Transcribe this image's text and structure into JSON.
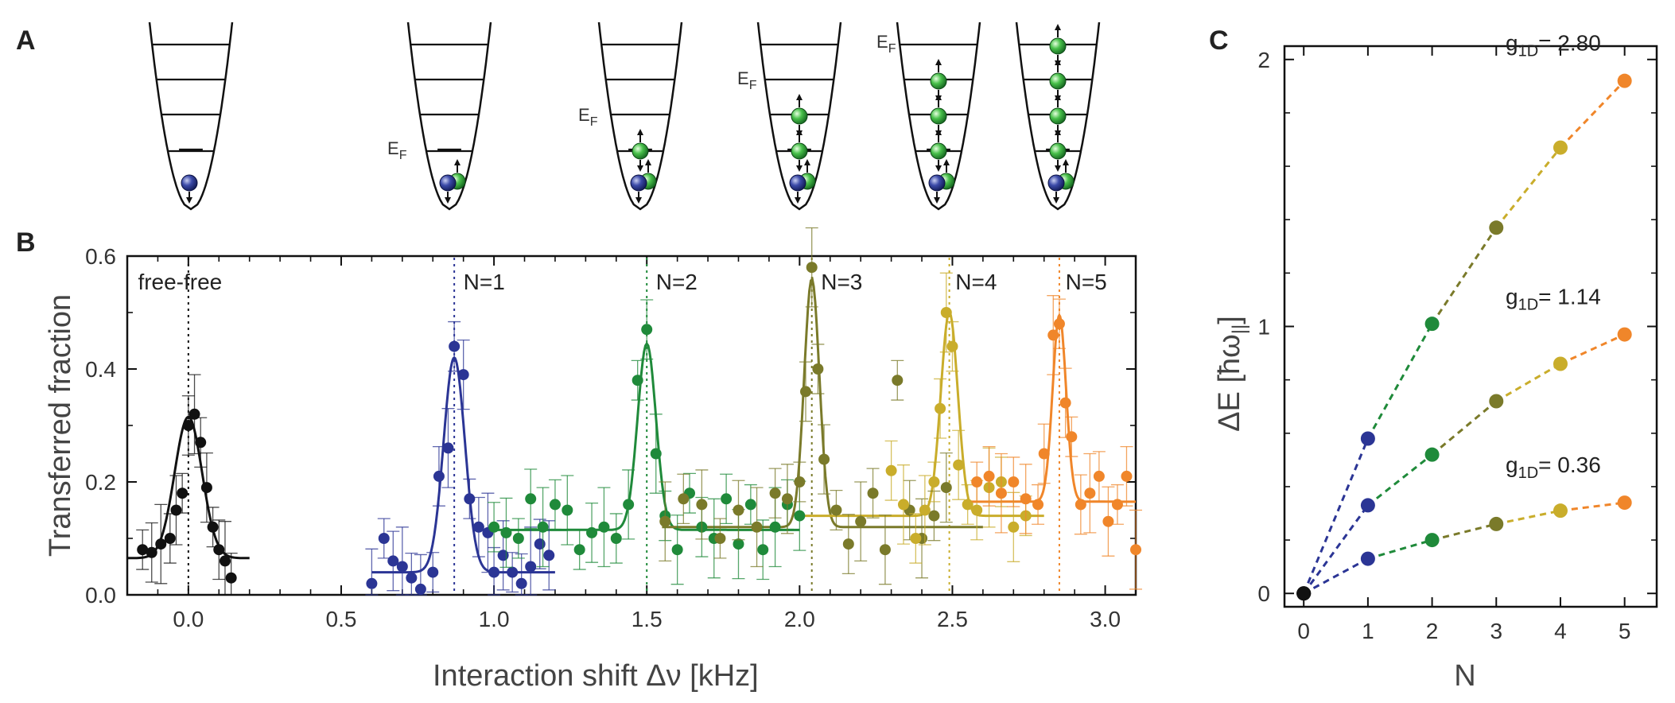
{
  "panels": {
    "a": "A",
    "b": "B",
    "c": "C"
  },
  "panel_a": {
    "fermi_label_main": "E",
    "fermi_label_sub": "F",
    "wells": [
      {
        "excited_levels": 0,
        "ef_level": null
      },
      {
        "excited_levels": 0,
        "ef_level": 1
      },
      {
        "excited_levels": 1,
        "ef_level": 2
      },
      {
        "excited_levels": 2,
        "ef_level": 3
      },
      {
        "excited_levels": 3,
        "ef_level": 4
      },
      {
        "excited_levels": 4,
        "ef_level": null
      }
    ],
    "colors": {
      "impurity": "#2a3593",
      "fermion": "#4ec24e"
    }
  },
  "chart_data": [
    {
      "type": "scatter",
      "panel": "B",
      "xlabel": "Interaction shift  Δν [kHz]",
      "ylabel": "Transferred fraction",
      "xlim": [
        -0.2,
        3.1
      ],
      "ylim": [
        0,
        0.6
      ],
      "xticks": [
        "0.0",
        "0.5",
        "1.0",
        "1.5",
        "2.0",
        "2.5",
        "3.0"
      ],
      "yticks": [
        "0.0",
        "0.2",
        "0.4",
        "0.6"
      ],
      "grid": false,
      "resonances": [
        {
          "label": "free-free",
          "center": 0.0,
          "color": "#111111",
          "amp": 0.25,
          "base": 0.065,
          "width": 0.045,
          "fit_range": [
            -0.2,
            0.2
          ]
        },
        {
          "label": "N=1",
          "center": 0.87,
          "color": "#2b3595",
          "amp": 0.38,
          "base": 0.04,
          "width": 0.035,
          "fit_range": [
            0.6,
            1.2
          ]
        },
        {
          "label": "N=2",
          "center": 1.5,
          "color": "#1f8a3a",
          "amp": 0.33,
          "base": 0.115,
          "width": 0.03,
          "fit_range": [
            1.0,
            2.0
          ]
        },
        {
          "label": "N=3",
          "center": 2.04,
          "color": "#7a7a2a",
          "amp": 0.44,
          "base": 0.12,
          "width": 0.025,
          "fit_range": [
            1.55,
            2.6
          ]
        },
        {
          "label": "N=4",
          "center": 2.49,
          "color": "#c9ad2b",
          "amp": 0.36,
          "base": 0.14,
          "width": 0.028,
          "fit_range": [
            2.0,
            2.8
          ]
        },
        {
          "label": "N=5",
          "center": 2.85,
          "color": "#f0862a",
          "amp": 0.33,
          "base": 0.165,
          "width": 0.022,
          "fit_range": [
            2.55,
            3.1
          ]
        }
      ],
      "series": [
        {
          "color": "#111111",
          "x": [
            -0.15,
            -0.12,
            -0.09,
            -0.06,
            -0.04,
            -0.02,
            0.0,
            0.02,
            0.04,
            0.06,
            0.08,
            0.1,
            0.12,
            0.14
          ],
          "y": [
            0.08,
            0.075,
            0.09,
            0.1,
            0.15,
            0.18,
            0.3,
            0.32,
            0.27,
            0.19,
            0.12,
            0.08,
            0.06,
            0.03
          ]
        },
        {
          "color": "#2b3595",
          "x": [
            0.6,
            0.64,
            0.67,
            0.7,
            0.73,
            0.76,
            0.8,
            0.82,
            0.85,
            0.87,
            0.9,
            0.92,
            0.95,
            0.98,
            1.0,
            1.03,
            1.06,
            1.09,
            1.12,
            1.15,
            1.18
          ],
          "y": [
            0.02,
            0.1,
            0.06,
            0.05,
            0.03,
            0.01,
            0.04,
            0.21,
            0.26,
            0.44,
            0.39,
            0.17,
            0.12,
            0.11,
            0.04,
            0.07,
            0.04,
            0.02,
            0.05,
            0.09,
            0.07
          ]
        },
        {
          "color": "#1f8a3a",
          "x": [
            1.0,
            1.04,
            1.08,
            1.12,
            1.16,
            1.2,
            1.24,
            1.28,
            1.32,
            1.36,
            1.4,
            1.44,
            1.47,
            1.5,
            1.53,
            1.56,
            1.6,
            1.64,
            1.68,
            1.72,
            1.76,
            1.8,
            1.84,
            1.88,
            1.92,
            1.96,
            2.0
          ],
          "y": [
            0.12,
            0.11,
            0.1,
            0.17,
            0.12,
            0.16,
            0.15,
            0.08,
            0.11,
            0.12,
            0.1,
            0.16,
            0.38,
            0.47,
            0.25,
            0.14,
            0.08,
            0.18,
            0.12,
            0.1,
            0.17,
            0.09,
            0.16,
            0.08,
            0.12,
            0.16,
            0.14
          ]
        },
        {
          "color": "#7a7a2a",
          "x": [
            1.56,
            1.62,
            1.68,
            1.74,
            1.8,
            1.86,
            1.92,
            1.96,
            2.0,
            2.02,
            2.04,
            2.06,
            2.08,
            2.12,
            2.16,
            2.2,
            2.24,
            2.28,
            2.32,
            2.36,
            2.4,
            2.44,
            2.48
          ],
          "y": [
            0.13,
            0.17,
            0.16,
            0.1,
            0.15,
            0.12,
            0.18,
            0.17,
            0.2,
            0.36,
            0.58,
            0.4,
            0.24,
            0.15,
            0.09,
            0.13,
            0.18,
            0.08,
            0.38,
            0.15,
            0.1,
            0.14,
            0.19
          ]
        },
        {
          "color": "#c9ad2b",
          "x": [
            2.3,
            2.34,
            2.38,
            2.41,
            2.44,
            2.46,
            2.48,
            2.5,
            2.52,
            2.55,
            2.58,
            2.62,
            2.66,
            2.7,
            2.74
          ],
          "y": [
            0.22,
            0.16,
            0.1,
            0.15,
            0.2,
            0.33,
            0.5,
            0.44,
            0.23,
            0.16,
            0.15,
            0.19,
            0.2,
            0.12,
            0.14
          ]
        },
        {
          "color": "#f0862a",
          "x": [
            2.58,
            2.62,
            2.66,
            2.7,
            2.74,
            2.78,
            2.8,
            2.83,
            2.85,
            2.87,
            2.89,
            2.92,
            2.95,
            2.98,
            3.01,
            3.04,
            3.07,
            3.1
          ],
          "y": [
            0.2,
            0.21,
            0.18,
            0.2,
            0.17,
            0.16,
            0.25,
            0.46,
            0.48,
            0.34,
            0.28,
            0.16,
            0.18,
            0.21,
            0.13,
            0.16,
            0.21,
            0.08
          ]
        }
      ]
    },
    {
      "type": "line",
      "panel": "C",
      "xlabel": "N",
      "ylabel_main": "ΔE [",
      "ylabel_unit": "ħω",
      "ylabel_sub": "||",
      "ylabel_end": "]",
      "xlim": [
        -0.3,
        5.5
      ],
      "ylim": [
        -0.05,
        2.05
      ],
      "xticks": [
        "0",
        "1",
        "2",
        "3",
        "4",
        "5"
      ],
      "yticks": [
        "0",
        "1",
        "2"
      ],
      "grid": false,
      "point_colors": [
        "#111111",
        "#2b3595",
        "#1f8a3a",
        "#7a7a2a",
        "#c9ad2b",
        "#f0862a"
      ],
      "x": [
        0,
        1,
        2,
        3,
        4,
        5
      ],
      "series": [
        {
          "label_main": "g",
          "label_sub": "1D",
          "label_value": "= 2.80",
          "y": [
            0,
            0.58,
            1.01,
            1.37,
            1.67,
            1.92
          ]
        },
        {
          "label_main": "g",
          "label_sub": "1D",
          "label_value": "= 1.14",
          "y": [
            0,
            0.33,
            0.52,
            0.72,
            0.86,
            0.97
          ]
        },
        {
          "label_main": "g",
          "label_sub": "1D",
          "label_value": "= 0.36",
          "y": [
            0,
            0.13,
            0.2,
            0.26,
            0.31,
            0.34
          ]
        }
      ]
    }
  ]
}
